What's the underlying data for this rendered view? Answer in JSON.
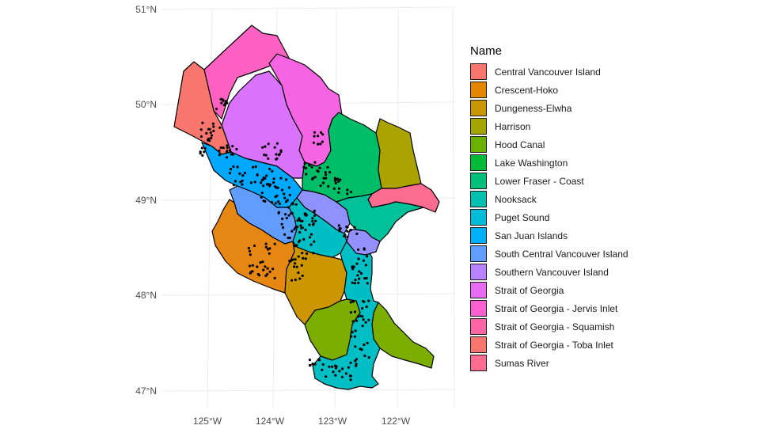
{
  "map": {
    "legend_title": "Name",
    "lat_labels": [
      "51°N",
      "50°N",
      "49°N",
      "48°N",
      "47°N"
    ],
    "lon_labels": [
      "125°W",
      "124°W",
      "123°W",
      "122°W"
    ],
    "grid": true,
    "legend_placement": "right",
    "point_color": "#000000",
    "regions": [
      {
        "name": "Central Vancouver Island",
        "color": "#F8766D"
      },
      {
        "name": "Crescent-Hoko",
        "color": "#E58700"
      },
      {
        "name": "Dungeness-Elwha",
        "color": "#C99800"
      },
      {
        "name": "Harrison",
        "color": "#A3A500"
      },
      {
        "name": "Hood Canal",
        "color": "#6BB100"
      },
      {
        "name": "Lake Washington",
        "color": "#00BA38"
      },
      {
        "name": "Lower Fraser - Coast",
        "color": "#00BF7D"
      },
      {
        "name": "Nooksack",
        "color": "#00C0AF"
      },
      {
        "name": "Puget Sound",
        "color": "#00BCD8"
      },
      {
        "name": "San Juan Islands",
        "color": "#00B0F6"
      },
      {
        "name": "South Central Vancouver Island",
        "color": "#619CFF"
      },
      {
        "name": "Southern Vancouver Island",
        "color": "#B983FF"
      },
      {
        "name": "Strait of Georgia",
        "color": "#E76BF3"
      },
      {
        "name": "Strait of Georgia - Jervis Inlet",
        "color": "#FD61D1"
      },
      {
        "name": "Strait of Georgia - Squamish",
        "color": "#FF67A4"
      },
      {
        "name": "Strait of Georgia - Toba Inlet",
        "color": "#F8766D"
      },
      {
        "name": "Sumas River",
        "color": "#FF6C91"
      }
    ]
  }
}
